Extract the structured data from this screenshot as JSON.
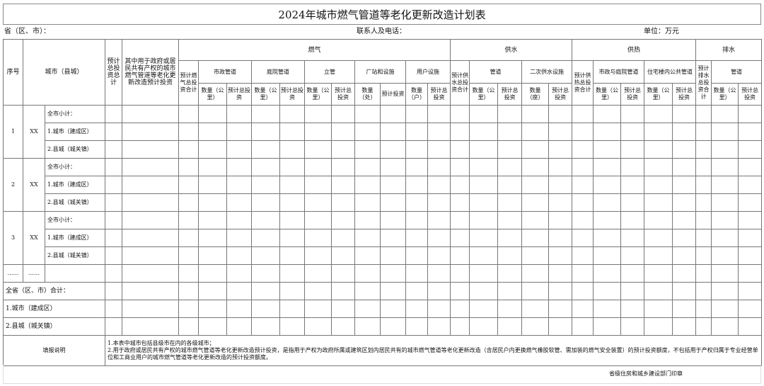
{
  "title": "2024年城市燃气管道等老化更新改造计划表",
  "info": {
    "province": "省（区、市）：",
    "contact": "联系人及电话：",
    "unit": "单位：万元"
  },
  "headers": {
    "seq": "序号",
    "city": "城市（县城）",
    "total": "预计总投资总计",
    "gov": "其中用于政府或居民共有产权的城市燃气管道等老化更新改造预计投资",
    "gas": "燃气",
    "water": "供水",
    "heat": "供热",
    "drain": "排水",
    "gas_total": "预计燃气总投资合计",
    "water_total": "预计供水总投资合计",
    "heat_total": "预计供热总投资合计",
    "drain_total": "预计排水总投资合计",
    "gas_items": [
      "市政管道",
      "庭院管道",
      "立管",
      "厂站和设施",
      "用户设施"
    ],
    "water_items": [
      "管道",
      "二次供水设施"
    ],
    "heat_items": [
      "市政与庭院管道",
      "住宅楼内公共管道"
    ],
    "drain_items": [
      "管道"
    ],
    "gas_sub": [
      "数量（公里）",
      "预计总投资",
      "数量（公里）",
      "预计总投资",
      "数量（公里）",
      "预计总投资",
      "数量（处）",
      "预计投资",
      "数量（户）",
      "预计总投资"
    ],
    "water_sub": [
      "数量（公里）",
      "预计总投资",
      "数量（座）",
      "预计总投资"
    ],
    "heat_sub": [
      "数量（公里）",
      "预计总投资",
      "数量（公里）",
      "预计总投资"
    ],
    "drain_sub": [
      "数量（公里）",
      "预计总投资"
    ]
  },
  "groups": [
    {
      "seq": "1",
      "city": "XX",
      "rows": [
        "全市小计：",
        "1.城市（建成区）",
        "2.县城（城关镇）"
      ]
    },
    {
      "seq": "2",
      "city": "XX",
      "rows": [
        "全市小计：",
        "1.城市（建成区）",
        "2.县城（城关镇）"
      ]
    },
    {
      "seq": "3",
      "city": "XX",
      "rows": [
        "全市小计：",
        "1.城市（建成区）",
        "2.县城（城关镇）"
      ]
    }
  ],
  "ellipsis": [
    "……",
    "……"
  ],
  "totals": [
    "全省（区、市）合计：",
    "1.城市（建成区）",
    "2.县城（城关镇）"
  ],
  "notes_label": "填报说明",
  "notes": [
    "1.本表中城市包括县级市在内的各级城市；",
    "2.用于政府或居民共有产权的城市燃气管道等老化更新改造预计投资，是指用于产权为政府所属或建筑区划内居民共有的城市燃气管道等老化更新改造（含居民户内更换燃气橡胶软管、需加装的燃气安全装置）的预计投资额度，不包括用于产权归属于专业经营单位和工商业用户的城市燃气管道等老化更新改造的预计投资额度。"
  ],
  "stamp": "省级住房和城乡建设部门印章"
}
